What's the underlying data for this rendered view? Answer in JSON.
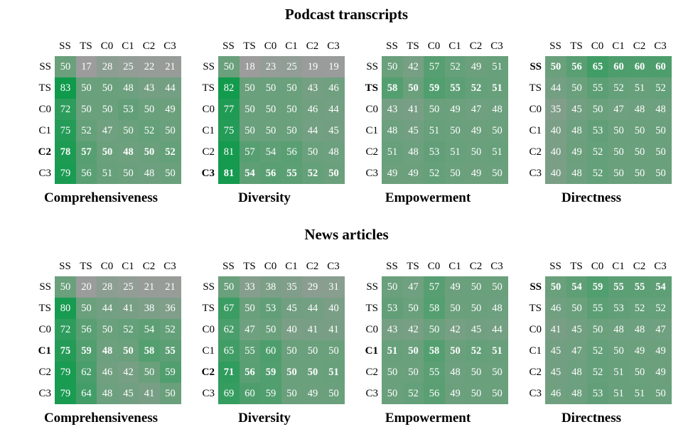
{
  "sections": [
    {
      "title": "Podcast transcripts"
    },
    {
      "title": "News articles"
    }
  ],
  "colors": {
    "green_high": "#0f9a4c",
    "neutral": "#6aa07c",
    "gray_low": "#9c9c9c"
  },
  "chart_data": [
    {
      "type": "heatmap",
      "section": "Podcast transcripts",
      "title": "Comprehensiveness",
      "row_labels": [
        "SS",
        "TS",
        "C0",
        "C1",
        "C2",
        "C3"
      ],
      "col_labels": [
        "SS",
        "TS",
        "C0",
        "C1",
        "C2",
        "C3"
      ],
      "values": [
        [
          50,
          17,
          28,
          25,
          22,
          21
        ],
        [
          83,
          50,
          50,
          48,
          43,
          44
        ],
        [
          72,
          50,
          50,
          53,
          50,
          49
        ],
        [
          75,
          52,
          47,
          50,
          52,
          50
        ],
        [
          78,
          57,
          50,
          48,
          50,
          52
        ],
        [
          79,
          56,
          51,
          50,
          48,
          50
        ]
      ],
      "bold_row": 4
    },
    {
      "type": "heatmap",
      "section": "Podcast transcripts",
      "title": "Diversity",
      "row_labels": [
        "SS",
        "TS",
        "C0",
        "C1",
        "C2",
        "C3"
      ],
      "col_labels": [
        "SS",
        "TS",
        "C0",
        "C1",
        "C2",
        "C3"
      ],
      "values": [
        [
          50,
          18,
          23,
          25,
          19,
          19
        ],
        [
          82,
          50,
          50,
          50,
          43,
          46
        ],
        [
          77,
          50,
          50,
          50,
          46,
          44
        ],
        [
          75,
          50,
          50,
          50,
          44,
          45
        ],
        [
          81,
          57,
          54,
          56,
          50,
          48
        ],
        [
          81,
          54,
          56,
          55,
          52,
          50
        ]
      ],
      "bold_row": 5
    },
    {
      "type": "heatmap",
      "section": "Podcast transcripts",
      "title": "Empowerment",
      "row_labels": [
        "SS",
        "TS",
        "C0",
        "C1",
        "C2",
        "C3"
      ],
      "col_labels": [
        "SS",
        "TS",
        "C0",
        "C1",
        "C2",
        "C3"
      ],
      "values": [
        [
          50,
          42,
          57,
          52,
          49,
          51
        ],
        [
          58,
          50,
          59,
          55,
          52,
          51
        ],
        [
          43,
          41,
          50,
          49,
          47,
          48
        ],
        [
          48,
          45,
          51,
          50,
          49,
          50
        ],
        [
          51,
          48,
          53,
          51,
          50,
          51
        ],
        [
          49,
          49,
          52,
          50,
          49,
          50
        ]
      ],
      "bold_row": 1
    },
    {
      "type": "heatmap",
      "section": "Podcast transcripts",
      "title": "Directness",
      "row_labels": [
        "SS",
        "TS",
        "C0",
        "C1",
        "C2",
        "C3"
      ],
      "col_labels": [
        "SS",
        "TS",
        "C0",
        "C1",
        "C2",
        "C3"
      ],
      "values": [
        [
          50,
          56,
          65,
          60,
          60,
          60
        ],
        [
          44,
          50,
          55,
          52,
          51,
          52
        ],
        [
          35,
          45,
          50,
          47,
          48,
          48
        ],
        [
          40,
          48,
          53,
          50,
          50,
          50
        ],
        [
          40,
          49,
          52,
          50,
          50,
          50
        ],
        [
          40,
          48,
          52,
          50,
          50,
          50
        ]
      ],
      "bold_row": 0
    },
    {
      "type": "heatmap",
      "section": "News articles",
      "title": "Comprehensiveness",
      "row_labels": [
        "SS",
        "TS",
        "C0",
        "C1",
        "C2",
        "C3"
      ],
      "col_labels": [
        "SS",
        "TS",
        "C0",
        "C1",
        "C2",
        "C3"
      ],
      "values": [
        [
          50,
          20,
          28,
          25,
          21,
          21
        ],
        [
          80,
          50,
          44,
          41,
          38,
          36
        ],
        [
          72,
          56,
          50,
          52,
          54,
          52
        ],
        [
          75,
          59,
          48,
          50,
          58,
          55
        ],
        [
          79,
          62,
          46,
          42,
          50,
          59
        ],
        [
          79,
          64,
          48,
          45,
          41,
          50
        ]
      ],
      "bold_row": 3
    },
    {
      "type": "heatmap",
      "section": "News articles",
      "title": "Diversity",
      "row_labels": [
        "SS",
        "TS",
        "C0",
        "C1",
        "C2",
        "C3"
      ],
      "col_labels": [
        "SS",
        "TS",
        "C0",
        "C1",
        "C2",
        "C3"
      ],
      "values": [
        [
          50,
          33,
          38,
          35,
          29,
          31
        ],
        [
          67,
          50,
          53,
          45,
          44,
          40
        ],
        [
          62,
          47,
          50,
          40,
          41,
          41
        ],
        [
          65,
          55,
          60,
          50,
          50,
          50
        ],
        [
          71,
          56,
          59,
          50,
          50,
          51
        ],
        [
          69,
          60,
          59,
          50,
          49,
          50
        ]
      ],
      "bold_row": 4
    },
    {
      "type": "heatmap",
      "section": "News articles",
      "title": "Empowerment",
      "row_labels": [
        "SS",
        "TS",
        "C0",
        "C1",
        "C2",
        "C3"
      ],
      "col_labels": [
        "SS",
        "TS",
        "C0",
        "C1",
        "C2",
        "C3"
      ],
      "values": [
        [
          50,
          47,
          57,
          49,
          50,
          50
        ],
        [
          53,
          50,
          58,
          50,
          50,
          48
        ],
        [
          43,
          42,
          50,
          42,
          45,
          44
        ],
        [
          51,
          50,
          58,
          50,
          52,
          51
        ],
        [
          50,
          50,
          55,
          48,
          50,
          50
        ],
        [
          50,
          52,
          56,
          49,
          50,
          50
        ]
      ],
      "bold_row": 3
    },
    {
      "type": "heatmap",
      "section": "News articles",
      "title": "Directness",
      "row_labels": [
        "SS",
        "TS",
        "C0",
        "C1",
        "C2",
        "C3"
      ],
      "col_labels": [
        "SS",
        "TS",
        "C0",
        "C1",
        "C2",
        "C3"
      ],
      "values": [
        [
          50,
          54,
          59,
          55,
          55,
          54
        ],
        [
          46,
          50,
          55,
          53,
          52,
          52
        ],
        [
          41,
          45,
          50,
          48,
          48,
          47
        ],
        [
          45,
          47,
          52,
          50,
          49,
          49
        ],
        [
          45,
          48,
          52,
          51,
          50,
          49
        ],
        [
          46,
          48,
          53,
          51,
          51,
          50
        ]
      ],
      "bold_row": 0
    }
  ]
}
